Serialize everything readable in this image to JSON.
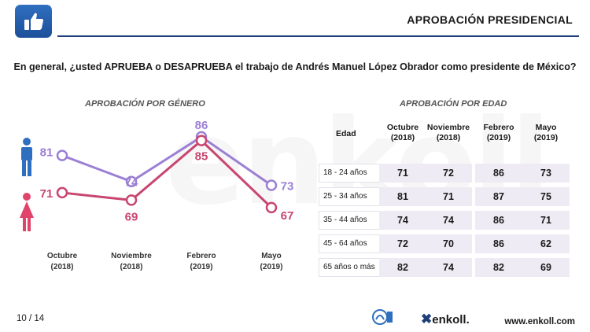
{
  "header": {
    "title": "APROBACIÓN PRESIDENCIAL",
    "logo_icon": "thumbs-up-icon"
  },
  "question": "En general, ¿usted APRUEBA o DESAPRUEBA el trabajo de Andrés Manuel López Obrador como presidente de México?",
  "watermark": "enkoll",
  "colors": {
    "hombres": "#9b7fd4",
    "mujeres": "#c8466f",
    "male_icon": "#2f6fc0",
    "female_icon": "#e0446a"
  },
  "chart_data": [
    {
      "type": "line",
      "title": "APROBACIÓN POR GÉNERO",
      "categories": [
        "Octubre\n(2018)",
        "Noviembre\n(2018)",
        "Febrero\n(2019)",
        "Mayo\n(2019)"
      ],
      "category_lines": [
        [
          "Octubre",
          "(2018)"
        ],
        [
          "Noviembre",
          "(2018)"
        ],
        [
          "Febrero",
          "(2019)"
        ],
        [
          "Mayo",
          "(2019)"
        ]
      ],
      "series": [
        {
          "icon": "male-icon",
          "values": [
            81,
            74,
            86,
            73
          ]
        },
        {
          "icon": "female-icon",
          "values": [
            71,
            69,
            85,
            67
          ]
        }
      ],
      "ylim": [
        60,
        90
      ],
      "grid": false
    },
    {
      "type": "table",
      "title": "APROBACIÓN POR EDAD",
      "row_header": "Edad",
      "columns": [
        [
          "Octubre",
          "(2018)"
        ],
        [
          "Noviembre",
          "(2018)"
        ],
        [
          "Febrero",
          "(2019)"
        ],
        [
          "Mayo",
          "(2019)"
        ]
      ],
      "rows": [
        {
          "label": "18 - 24 años",
          "values": [
            71,
            72,
            86,
            73
          ]
        },
        {
          "label": "25 - 34 años",
          "values": [
            81,
            71,
            87,
            75
          ]
        },
        {
          "label": "35 - 44 años",
          "values": [
            74,
            74,
            86,
            71
          ]
        },
        {
          "label": "45 - 64 años",
          "values": [
            72,
            70,
            86,
            62
          ]
        },
        {
          "label": "65 años o más",
          "values": [
            82,
            74,
            82,
            69
          ]
        }
      ]
    }
  ],
  "footer": {
    "page": "10 / 14",
    "brand": "enkoll.",
    "website": "www.enkoll.com"
  }
}
